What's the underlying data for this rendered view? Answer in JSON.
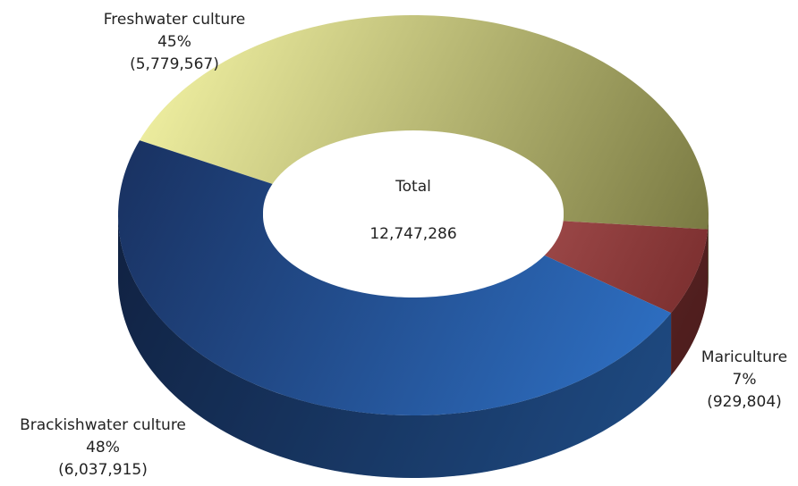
{
  "chart_data": {
    "type": "pie",
    "categories": [
      "Freshwater culture",
      "Mariculture",
      "Brackishwater culture"
    ],
    "values": [
      45,
      7,
      48
    ],
    "value_labels": [
      "45%",
      "7%",
      "48%"
    ],
    "amounts": [
      5779567,
      929804,
      6037915
    ],
    "amount_labels": [
      "(5,779,567)",
      "(929,804)",
      "(6,037,915)"
    ],
    "gradients": [
      [
        "#fbfbaa",
        "#74743e"
      ],
      [
        "#f58c8c",
        "#7a2e2e"
      ],
      [
        "#172b57",
        "#2e70c4"
      ]
    ],
    "center_title": "Total",
    "total": 12747286,
    "total_label": "12,747,286"
  }
}
